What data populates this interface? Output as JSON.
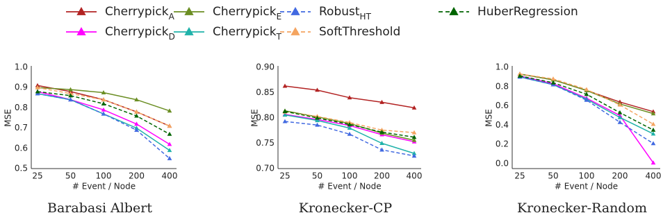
{
  "legend": {
    "entries": [
      {
        "name": "Cherrypick",
        "subscript": "A",
        "color": "#b22222",
        "dashed": false
      },
      {
        "name": "Cherrypick",
        "subscript": "D",
        "color": "#ff00ff",
        "dashed": false
      },
      {
        "name": "Cherrypick",
        "subscript": "E",
        "color": "#6b8e23",
        "dashed": false
      },
      {
        "name": "Cherrypick",
        "subscript": "T",
        "color": "#20b2aa",
        "dashed": false
      },
      {
        "name": "Robust",
        "subscript": "HT",
        "color": "#4169e1",
        "dashed": true
      },
      {
        "name": "SoftThreshold",
        "color": "#f4a460",
        "dashed": true
      },
      {
        "name": "HuberRegression",
        "color": "#006400",
        "dashed": true
      }
    ]
  },
  "chart_data": [
    {
      "type": "line",
      "title": "Barabasi Albert",
      "x_label": "# Event / Node",
      "y_label": "MSE",
      "grid": false,
      "categories": [
        "25",
        "50",
        "100",
        "200",
        "400"
      ],
      "ylim": [
        0.5,
        1.0
      ],
      "yticks": [
        0.5,
        0.6,
        0.7,
        0.8,
        0.9,
        {
          "value": 1,
          "label": "1.0"
        }
      ],
      "series": [
        {
          "values": [
            0.91,
            0.88,
            0.84,
            0.78,
            0.71
          ]
        },
        {
          "values": [
            0.88,
            0.84,
            0.79,
            0.72,
            0.62
          ]
        },
        {
          "values": [
            0.9,
            0.89,
            0.875,
            0.84,
            0.785
          ]
        },
        {
          "values": [
            0.87,
            0.84,
            0.77,
            0.7,
            0.59
          ]
        },
        {
          "values": [
            0.87,
            0.84,
            0.77,
            0.69,
            0.55
          ]
        },
        {
          "values": [
            0.9,
            0.87,
            0.84,
            0.78,
            0.71
          ]
        },
        {
          "values": [
            0.88,
            0.86,
            0.82,
            0.76,
            0.67
          ]
        }
      ]
    },
    {
      "type": "line",
      "title": "Kronecker-CP",
      "x_label": "# Event / Node",
      "y_label": "MSE",
      "grid": false,
      "categories": [
        "25",
        "50",
        "100",
        "200",
        "400"
      ],
      "ylim": [
        0.7,
        0.9
      ],
      "yticks": [
        {
          "value": 0.7,
          "label": "0.70"
        },
        0.75,
        {
          "value": 0.8,
          "label": "0.80"
        },
        0.85,
        {
          "value": 0.9,
          "label": "0.90"
        }
      ],
      "series": [
        {
          "values": [
            0.863,
            0.855,
            0.84,
            0.831,
            0.82
          ]
        },
        {
          "values": [
            0.807,
            0.797,
            0.785,
            0.767,
            0.753
          ]
        },
        {
          "values": [
            0.814,
            0.802,
            0.789,
            0.77,
            0.756
          ]
        },
        {
          "values": [
            0.806,
            0.795,
            0.78,
            0.75,
            0.73
          ]
        },
        {
          "values": [
            0.793,
            0.786,
            0.768,
            0.737,
            0.725
          ]
        },
        {
          "values": [
            0.812,
            0.803,
            0.791,
            0.776,
            0.771
          ]
        },
        {
          "values": [
            0.813,
            0.8,
            0.787,
            0.772,
            0.762
          ]
        }
      ]
    },
    {
      "type": "line",
      "title": "Kronecker-Random",
      "x_label": "# Event / Node",
      "y_label": "MSE",
      "grid": false,
      "categories": [
        "25",
        "50",
        "100",
        "200",
        "400"
      ],
      "ylim": [
        -0.05,
        1.0
      ],
      "yticks": [
        {
          "value": 0,
          "label": "0.0"
        },
        0.2,
        0.4,
        0.6,
        0.8,
        {
          "value": 1,
          "label": "1.0"
        }
      ],
      "series": [
        {
          "values": [
            0.93,
            0.87,
            0.76,
            0.64,
            0.54
          ]
        },
        {
          "values": [
            0.91,
            0.83,
            0.68,
            0.5,
            0.01
          ]
        },
        {
          "values": [
            0.93,
            0.87,
            0.76,
            0.62,
            0.52
          ]
        },
        {
          "values": [
            0.9,
            0.82,
            0.67,
            0.48,
            0.31
          ]
        },
        {
          "values": [
            0.9,
            0.82,
            0.66,
            0.43,
            0.21
          ]
        },
        {
          "values": [
            0.93,
            0.88,
            0.77,
            0.61,
            0.41
          ]
        },
        {
          "values": [
            0.91,
            0.84,
            0.72,
            0.53,
            0.35
          ]
        }
      ]
    }
  ]
}
